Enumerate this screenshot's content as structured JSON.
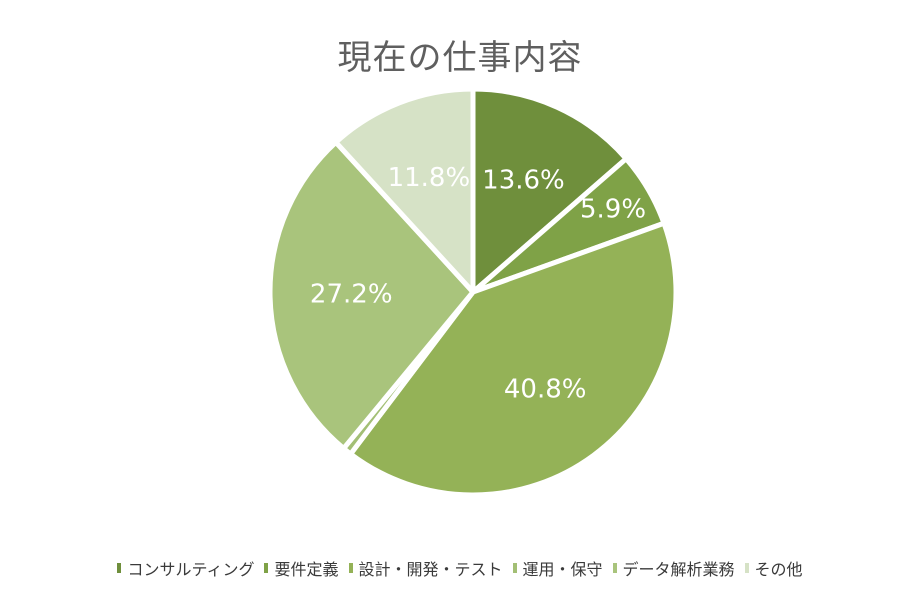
{
  "chart_data": {
    "type": "pie",
    "title": "現在の仕事内容",
    "categories": [
      "コンサルティング",
      "要件定義",
      "設計・開発・テスト",
      "運用・保守",
      "データ解析業務",
      "その他"
    ],
    "values": [
      13.6,
      5.9,
      40.8,
      0.7,
      27.2,
      11.8
    ],
    "labels": [
      "13.6%",
      "5.9%",
      "40.8%",
      "",
      "27.2%",
      "11.8%"
    ],
    "colors": [
      "#6f8f3c",
      "#7fa247",
      "#94b257",
      "#a3bf75",
      "#a9c47c",
      "#d6e2c6"
    ],
    "legend_position": "bottom"
  }
}
